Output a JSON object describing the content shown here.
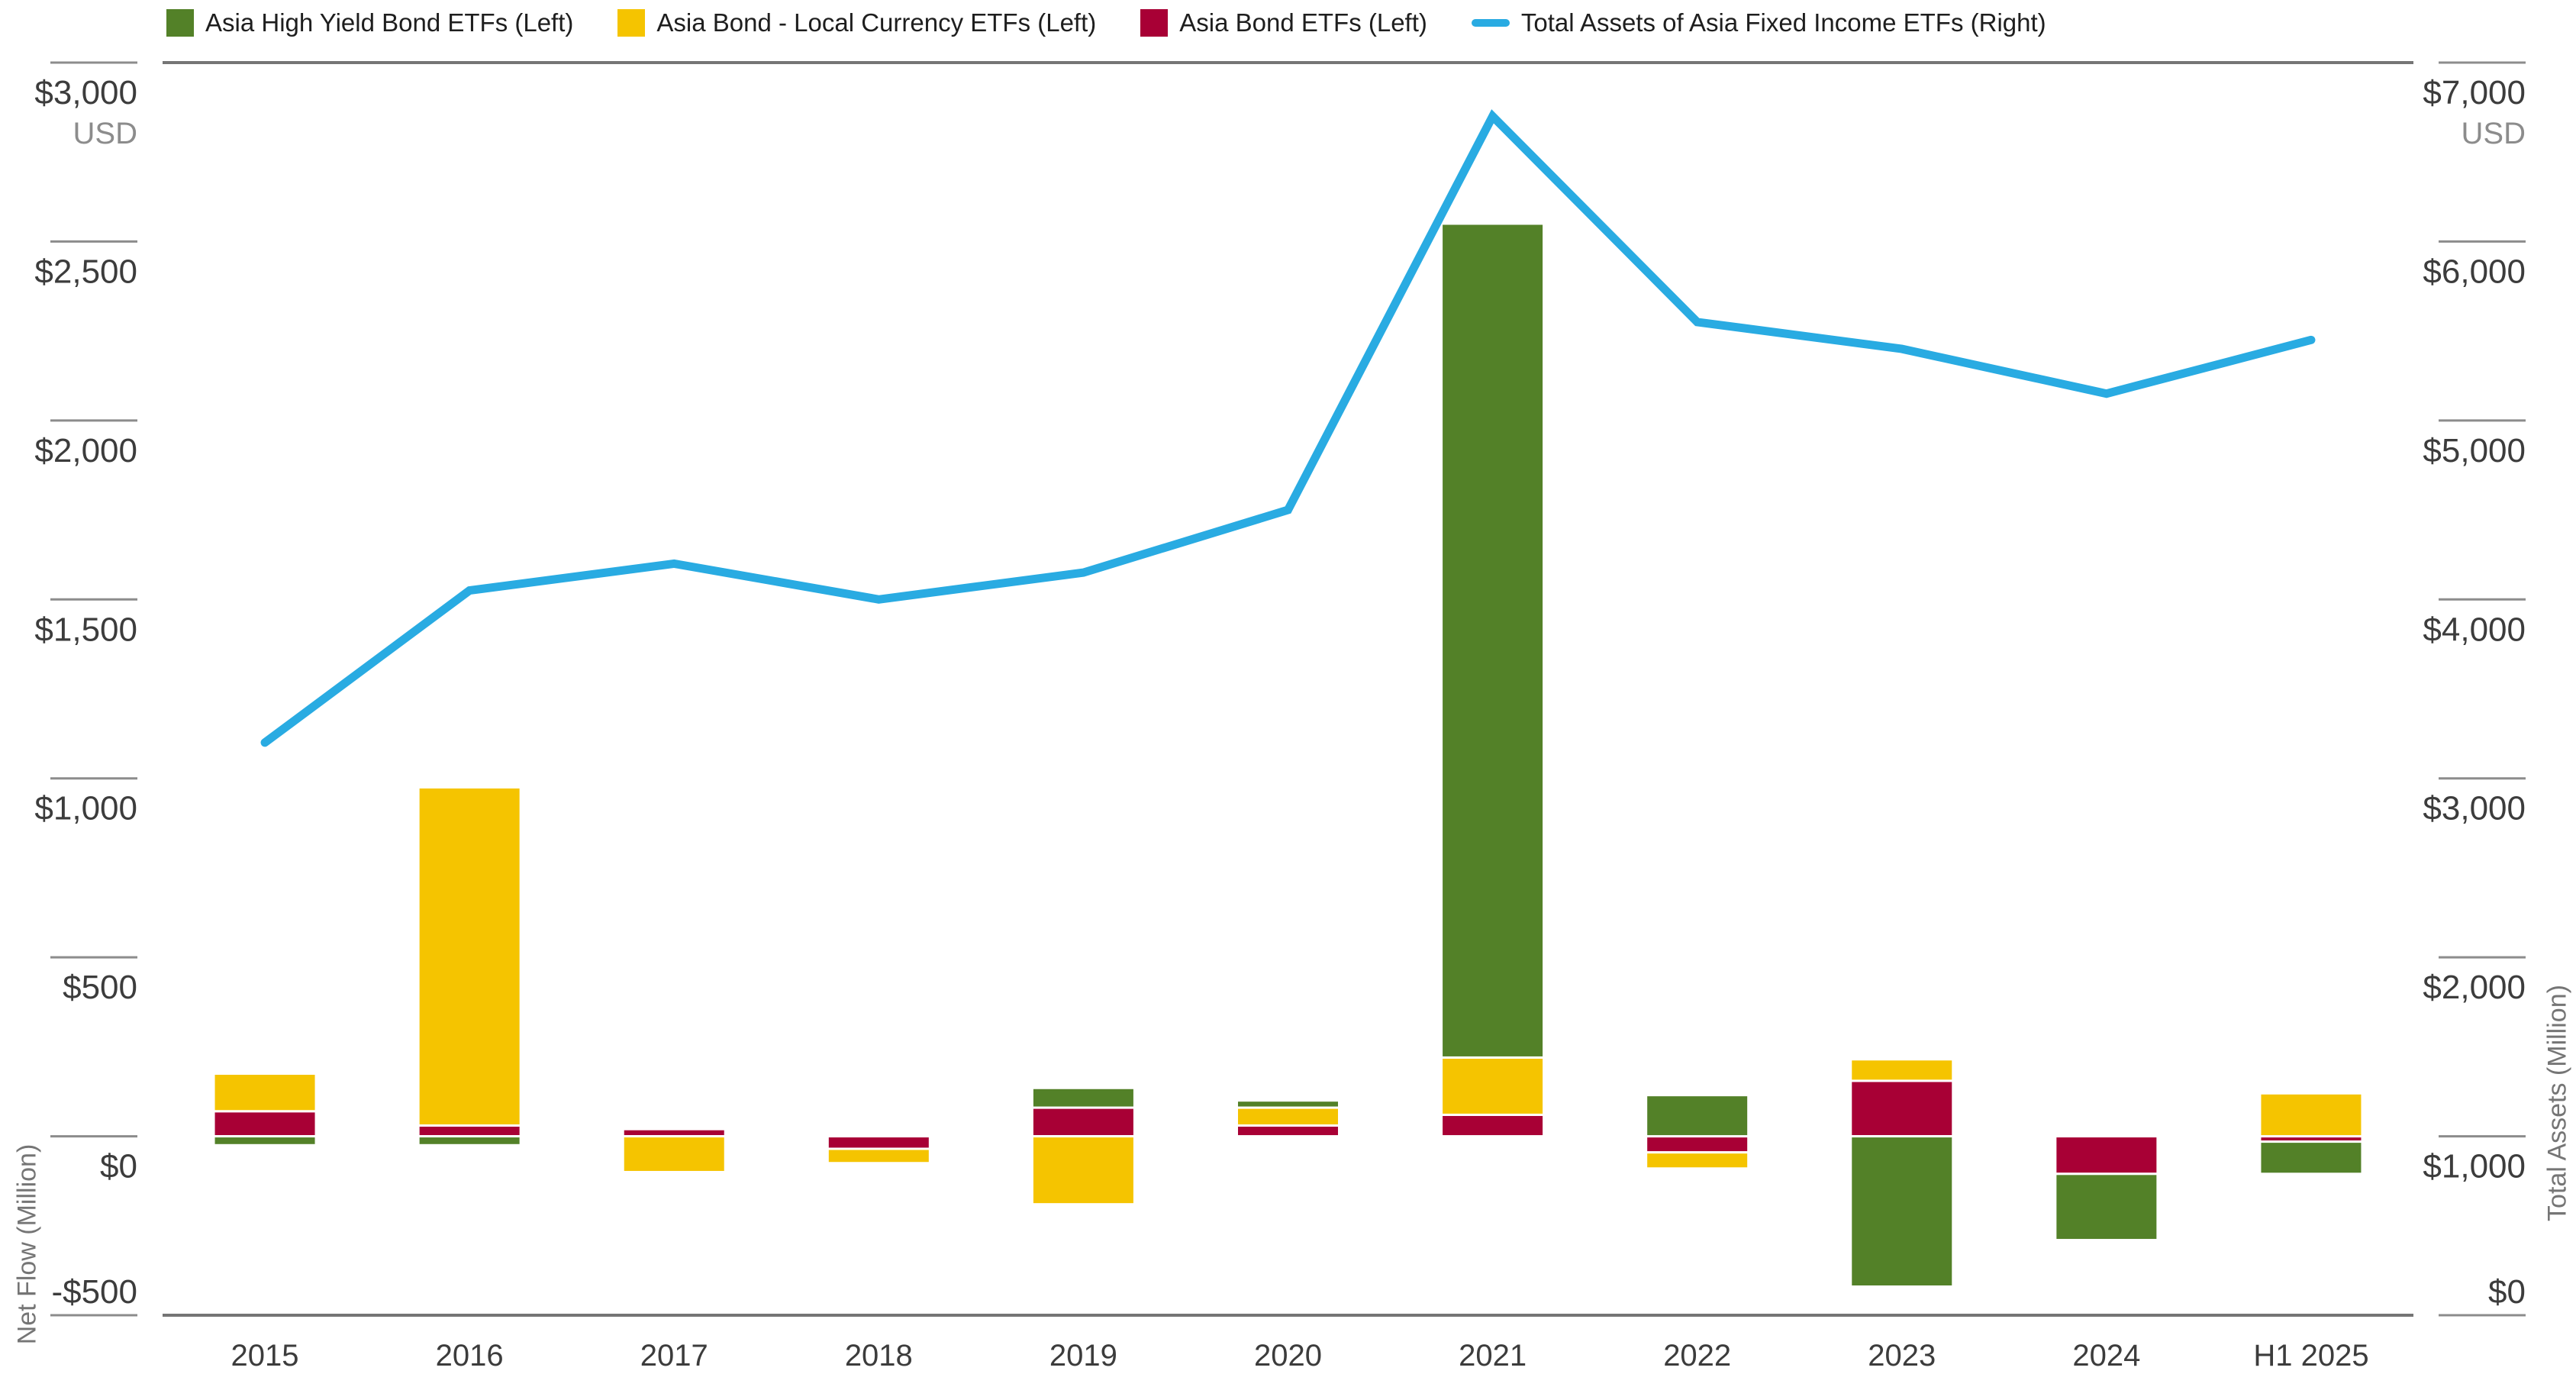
{
  "legend": {
    "items": [
      {
        "label": "Asia High Yield Bond ETFs (Left)",
        "color": "#538128",
        "swatch": "box"
      },
      {
        "label": "Asia Bond - Local Currency ETFs (Left)",
        "color": "#F5C400",
        "swatch": "box"
      },
      {
        "label": "Asia Bond ETFs (Left)",
        "color": "#A80035",
        "swatch": "box"
      },
      {
        "label": "Total Assets of Asia Fixed Income ETFs (Right)",
        "color": "#29ABE2",
        "swatch": "line"
      }
    ]
  },
  "left_axis": {
    "title": "Net Flow (Million)",
    "currency_note": "USD",
    "max": 3000,
    "min": -500,
    "ticks": [
      {
        "value": 3000,
        "label": "$3,000"
      },
      {
        "value": 2500,
        "label": "$2,500"
      },
      {
        "value": 2000,
        "label": "$2,000"
      },
      {
        "value": 1500,
        "label": "$1,500"
      },
      {
        "value": 1000,
        "label": "$1,000"
      },
      {
        "value": 500,
        "label": "$500"
      },
      {
        "value": 0,
        "label": "$0"
      },
      {
        "value": -500,
        "label": "-$500"
      }
    ]
  },
  "right_axis": {
    "title": "Total Assets (Million)",
    "currency_note": "USD",
    "max": 7000,
    "min": 0,
    "ticks": [
      {
        "value": 7000,
        "label": "$7,000"
      },
      {
        "value": 6000,
        "label": "$6,000"
      },
      {
        "value": 5000,
        "label": "$5,000"
      },
      {
        "value": 4000,
        "label": "$4,000"
      },
      {
        "value": 3000,
        "label": "$3,000"
      },
      {
        "value": 2000,
        "label": "$2,000"
      },
      {
        "value": 1000,
        "label": "$1,000"
      },
      {
        "value": 0,
        "label": "$0"
      }
    ]
  },
  "chart_data": {
    "type": "combo",
    "categories": [
      "2015",
      "2016",
      "2017",
      "2018",
      "2019",
      "2020",
      "2021",
      "2022",
      "2023",
      "2024",
      "H1 2025"
    ],
    "series": [
      {
        "name": "Asia High Yield Bond ETFs (Left)",
        "type": "bar",
        "axis": "left",
        "color": "#538128",
        "values": [
          -25,
          -25,
          0,
          0,
          55,
          20,
          2330,
          115,
          -420,
          -185,
          -90
        ]
      },
      {
        "name": "Asia Bond - Local Currency ETFs (Left)",
        "type": "bar",
        "axis": "left",
        "color": "#F5C400",
        "values": [
          105,
          945,
          -100,
          -40,
          -190,
          50,
          160,
          -45,
          60,
          0,
          120
        ]
      },
      {
        "name": "Asia Bond ETFs (Left)",
        "type": "bar",
        "axis": "left",
        "color": "#A80035",
        "values": [
          70,
          30,
          20,
          -35,
          80,
          30,
          60,
          -45,
          155,
          -105,
          -15
        ]
      },
      {
        "name": "Total Assets of Asia Fixed Income ETFs (Right)",
        "type": "line",
        "axis": "right",
        "color": "#29ABE2",
        "values": [
          3200,
          4050,
          4200,
          4000,
          4150,
          4500,
          6700,
          5550,
          5400,
          5150,
          5450
        ]
      }
    ],
    "bar_stack_order": [
      2,
      1,
      0
    ],
    "left_axis_range": [
      -500,
      3000
    ],
    "right_axis_range": [
      0,
      7000
    ],
    "grid": "off",
    "legend_position": "top"
  },
  "styles": {
    "tick_line_color": "#8C8C8C",
    "border_color": "#757575",
    "tick_label_color": "#3C3C3C",
    "secondary_label_color": "#8C8C8C",
    "bar_border_color": "#FFFFFF"
  }
}
